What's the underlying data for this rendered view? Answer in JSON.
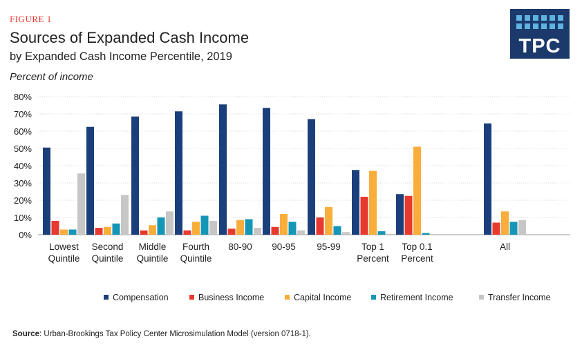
{
  "header": {
    "figure_label": "FIGURE 1",
    "title": "Sources of Expanded Cash Income",
    "subtitle": "by Expanded Cash Income Percentile, 2019",
    "unit_label": "Percent of income"
  },
  "logo": {
    "text": "TPC",
    "bg_color": "#1b3a6b",
    "accent_color": "#5fb3e0"
  },
  "footer": {
    "source_label": "Source",
    "source_text": ": Urban-Brookings Tax Policy Center Microsimulation Model (version 0718-1)."
  },
  "chart_data": {
    "type": "bar",
    "categories": [
      [
        "Lowest",
        "Quintile"
      ],
      [
        "Second",
        "Quintile"
      ],
      [
        "Middle",
        "Quintile"
      ],
      [
        "Fourth",
        "Quintile"
      ],
      [
        "80-90"
      ],
      [
        "90-95"
      ],
      [
        "95-99"
      ],
      [
        "Top 1",
        "Percent"
      ],
      [
        "Top 0.1",
        "Percent"
      ],
      [
        "All"
      ]
    ],
    "series": [
      {
        "name": "Compensation",
        "color": "#1b3f7a",
        "values": [
          50.5,
          62.5,
          68.5,
          71.5,
          75.5,
          73.5,
          67,
          37.5,
          23.5,
          64.5
        ]
      },
      {
        "name": "Business Income",
        "color": "#e8392f",
        "values": [
          8,
          4,
          2.5,
          2.5,
          3.5,
          4.5,
          10,
          22,
          22.5,
          7
        ]
      },
      {
        "name": "Capital Income",
        "color": "#f9ae3b",
        "values": [
          3,
          4.5,
          5.5,
          7.5,
          8.5,
          12,
          16,
          37,
          51,
          13.5
        ]
      },
      {
        "name": "Retirement Income",
        "color": "#1696b6",
        "values": [
          3,
          6.5,
          10,
          11,
          9,
          7.5,
          5,
          2,
          1,
          7.5
        ]
      },
      {
        "name": "Transfer Income",
        "color": "#c6c6c6",
        "values": [
          35.5,
          23,
          13.5,
          8,
          4,
          2.5,
          1.5,
          0.5,
          0,
          8.5
        ]
      }
    ],
    "yticks": [
      "0%",
      "10%",
      "20%",
      "30%",
      "40%",
      "50%",
      "60%",
      "70%",
      "80%"
    ],
    "ylim": [
      0,
      80
    ],
    "grid": true,
    "legend_position": "bottom"
  }
}
